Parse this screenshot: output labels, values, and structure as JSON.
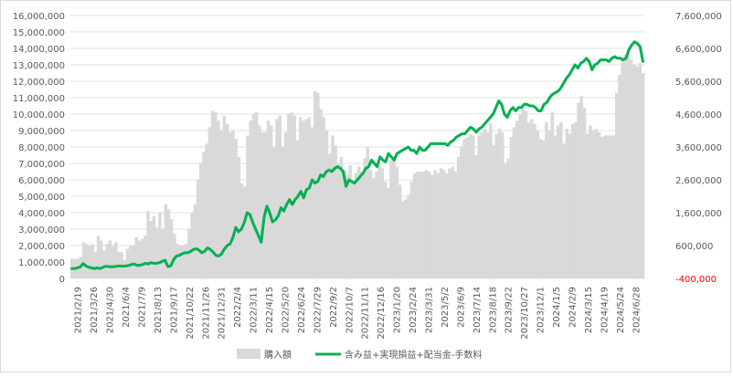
{
  "chart_data": {
    "type": "bar+line",
    "title": "",
    "left_axis": {
      "ylim": [
        0,
        16000000
      ],
      "ticks": [
        0,
        1000000,
        2000000,
        3000000,
        4000000,
        5000000,
        6000000,
        7000000,
        8000000,
        9000000,
        10000000,
        11000000,
        12000000,
        13000000,
        14000000,
        15000000,
        16000000
      ],
      "tick_labels": [
        "0",
        "1,000,000",
        "2,000,000",
        "3,000,000",
        "4,000,000",
        "5,000,000",
        "6,000,000",
        "7,000,000",
        "8,000,000",
        "9,000,000",
        "10,000,000",
        "11,000,000",
        "12,000,000",
        "13,000,000",
        "14,000,000",
        "15,000,000",
        "16,000,000"
      ]
    },
    "right_axis": {
      "ylim": [
        -400000,
        7600000
      ],
      "ticks": [
        -400000,
        600000,
        1600000,
        2600000,
        3600000,
        4600000,
        5600000,
        6600000,
        7600000
      ],
      "tick_labels": [
        "-400,000",
        "600,000",
        "1,600,000",
        "2,600,000",
        "3,600,000",
        "4,600,000",
        "5,600,000",
        "6,600,000",
        "7,600,000"
      ],
      "negative_color": "#ff0000"
    },
    "x_tick_labels": [
      "2021/2/19",
      "2021/3/26",
      "2021/4/30",
      "2021/6/4",
      "2021/7/9",
      "2021/8/13",
      "2021/9/17",
      "2021/10/22",
      "2021/11/26",
      "2021/12/31",
      "2022/2/4",
      "2022/3/11",
      "2022/4/15",
      "2022/5/20",
      "2022/6/24",
      "2022/7/29",
      "2022/9/2",
      "2022/10/7",
      "2022/11/11",
      "2022/12/16",
      "2023/1/20",
      "2023/2/24",
      "2023/3/31",
      "2023/5/2",
      "2023/6/9",
      "2023/7/14",
      "2023/8/18",
      "2023/9/22",
      "2023/10/27",
      "2023/12/1",
      "2024/1/5",
      "2024/2/9",
      "2024/3/15",
      "2024/4/19",
      "2024/5/24",
      "2024/6/28"
    ],
    "grid": true,
    "legend": {
      "position": "bottom",
      "entries": [
        "購入額",
        "含み益+実現損益+配当金-手数料"
      ]
    },
    "colors": {
      "bar": "#d9d9d9",
      "line": "#00b050",
      "grid": "#e0e0e0",
      "axis_text": "#595959"
    },
    "series": [
      {
        "name": "購入額",
        "axis": "left",
        "kind": "bar",
        "values": [
          1200000,
          1200000,
          1200000,
          1300000,
          2200000,
          2100000,
          2000000,
          2100000,
          1600000,
          2600000,
          2300000,
          1700000,
          2100000,
          2300000,
          2000000,
          2200000,
          1600000,
          1600000,
          1100000,
          1800000,
          2000000,
          2000000,
          2500000,
          2300000,
          2400000,
          2600000,
          4100000,
          3500000,
          3800000,
          3100000,
          4000000,
          3000000,
          4500000,
          4200000,
          3600000,
          2700000,
          2100000,
          2000000,
          2000000,
          2100000,
          3000000,
          4000000,
          4500000,
          6000000,
          7000000,
          7700000,
          8200000,
          9200000,
          10200000,
          10100000,
          9600000,
          9000000,
          9900000,
          9400000,
          8900000,
          9000000,
          8500000,
          7400000,
          5800000,
          5600000,
          8700000,
          9600000,
          10000000,
          10100000,
          9300000,
          8900000,
          8900000,
          9600000,
          9300000,
          8000000,
          9700000,
          9900000,
          8000000,
          8900000,
          10000000,
          10100000,
          9900000,
          8400000,
          9800000,
          9600000,
          9700000,
          9800000,
          9200000,
          11400000,
          11300000,
          10300000,
          9800000,
          9000000,
          7600000,
          8700000,
          8100000,
          7000000,
          7400000,
          6600000,
          6300000,
          6900000,
          5800000,
          6400000,
          6800000,
          6500000,
          7300000,
          8000000,
          6600000,
          6100000,
          6500000,
          6900000,
          6700000,
          5900000,
          5500000,
          7200000,
          7200000,
          6800000,
          5700000,
          4700000,
          4800000,
          5100000,
          5900000,
          6400000,
          6500000,
          6500000,
          6500000,
          6600000,
          6500000,
          6300000,
          6600000,
          6400000,
          6700000,
          6600000,
          6400000,
          6700000,
          6800000,
          6500000,
          7400000,
          8000000,
          8500000,
          8600000,
          8800000,
          8700000,
          7500000,
          8700000,
          8900000,
          9100000,
          8900000,
          9400000,
          8100000,
          8800000,
          9100000,
          8900000,
          7000000,
          7300000,
          8600000,
          9200000,
          9600000,
          10000000,
          10400000,
          10200000,
          9500000,
          9700000,
          9400000,
          9000000,
          8500000,
          8400000,
          9500000,
          9000000,
          10100000,
          8700000,
          9300000,
          9500000,
          8200000,
          9100000,
          8800000,
          9400000,
          9500000,
          10700000,
          11100000,
          10400000,
          8800000,
          9300000,
          9000000,
          9100000,
          8900000,
          8600000,
          8700000,
          8700000,
          8700000,
          8700000,
          11300000,
          12400000,
          13400000,
          13600000,
          13700000,
          13300000,
          13000000,
          12900000,
          13100000,
          12500000
        ]
      },
      {
        "name": "含み益+実現損益+配当金-手数料",
        "axis": "right",
        "kind": "line",
        "values": [
          -100000,
          -100000,
          -80000,
          -50000,
          50000,
          -20000,
          -60000,
          -80000,
          -100000,
          -80000,
          -100000,
          -60000,
          -30000,
          -40000,
          -50000,
          -40000,
          -30000,
          -20000,
          -30000,
          -20000,
          -10000,
          20000,
          40000,
          0,
          0,
          20000,
          60000,
          40000,
          80000,
          60000,
          60000,
          80000,
          120000,
          150000,
          -40000,
          -20000,
          170000,
          280000,
          300000,
          350000,
          380000,
          380000,
          420000,
          480000,
          500000,
          460000,
          380000,
          430000,
          530000,
          480000,
          400000,
          300000,
          280000,
          350000,
          500000,
          600000,
          650000,
          850000,
          1150000,
          1020000,
          1100000,
          1300000,
          1600000,
          1550000,
          1300000,
          1100000,
          900000,
          700000,
          1450000,
          1800000,
          1600000,
          1320000,
          1380000,
          1500000,
          1750000,
          1650000,
          1850000,
          2000000,
          1850000,
          2000000,
          2100000,
          2250000,
          2050000,
          2300000,
          2350000,
          2600000,
          2500000,
          2550000,
          2750000,
          2700000,
          2850000,
          2900000,
          2850000,
          2950000,
          3000000,
          2950000,
          2850000,
          2400000,
          2600000,
          2550000,
          2500000,
          2600000,
          2700000,
          2800000,
          2950000,
          3000000,
          3200000,
          3100000,
          3000000,
          3300000,
          3200000,
          3150000,
          3400000,
          3300000,
          3200000,
          3400000,
          3450000,
          3500000,
          3550000,
          3600000,
          3500000,
          3500000,
          3400000,
          3600000,
          3500000,
          3500000,
          3600000,
          3700000,
          3700000,
          3700000,
          3700000,
          3700000,
          3700000,
          3650000,
          3750000,
          3800000,
          3900000,
          3950000,
          4000000,
          4000000,
          4100000,
          4200000,
          4150000,
          4050000,
          4150000,
          4200000,
          4300000,
          4400000,
          4500000,
          4600000,
          4800000,
          5000000,
          4900000,
          4600000,
          4500000,
          4700000,
          4800000,
          4700000,
          4800000,
          4800000,
          4900000,
          4900000,
          4850000,
          4850000,
          4800000,
          4700000,
          4700000,
          4900000,
          4950000,
          5100000,
          5200000,
          5250000,
          5300000,
          5400000,
          5550000,
          5700000,
          5800000,
          5950000,
          6100000,
          6000000,
          6150000,
          6200000,
          6300000,
          6200000,
          5950000,
          6100000,
          6150000,
          6250000,
          6250000,
          6250000,
          6200000,
          6300000,
          6350000,
          6300000,
          6300000,
          6250000,
          6300000,
          6550000,
          6700000,
          6800000,
          6750000,
          6650000,
          6200000
        ]
      }
    ]
  }
}
